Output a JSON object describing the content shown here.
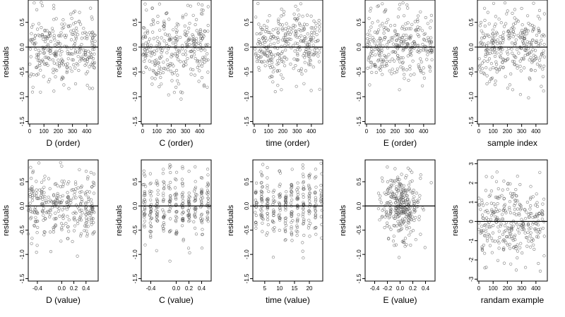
{
  "chart_data": [
    {
      "type": "scatter",
      "xlabel": "D (order)",
      "ylabel": "residuals",
      "xlim": [
        -10,
        480
      ],
      "ylim": [
        -1.55,
        0.95
      ],
      "xticks": [
        0,
        100,
        200,
        300,
        400
      ],
      "xtick_labels": [
        "0",
        "100",
        "200",
        "300",
        "400"
      ],
      "yticks": [
        -1.5,
        -1.0,
        -0.5,
        0.0,
        0.5
      ],
      "ytick_labels": [
        "-1.5",
        "-1.0",
        "-0.5",
        "0.0",
        "0.5"
      ],
      "hline": 0,
      "x_domain": [
        0,
        460
      ],
      "x_spread": 0,
      "y_sd": 0.36,
      "y_mean": 0.0,
      "seed": 11
    },
    {
      "type": "scatter",
      "xlabel": "C (order)",
      "ylabel": "residuals",
      "xlim": [
        -10,
        480
      ],
      "ylim": [
        -1.55,
        0.95
      ],
      "xticks": [
        0,
        100,
        200,
        300,
        400
      ],
      "xtick_labels": [
        "0",
        "100",
        "200",
        "300",
        "400"
      ],
      "yticks": [
        -1.5,
        -1.0,
        -0.5,
        0.0,
        0.5
      ],
      "ytick_labels": [
        "-1.5",
        "-1.0",
        "-0.5",
        "0.0",
        "0.5"
      ],
      "hline": 0,
      "x_domain": [
        0,
        460
      ],
      "x_spread": 0,
      "y_sd": 0.36,
      "y_mean": 0.0,
      "seed": 23
    },
    {
      "type": "scatter",
      "xlabel": "time (order)",
      "ylabel": "residuals",
      "xlim": [
        -10,
        480
      ],
      "ylim": [
        -1.55,
        0.95
      ],
      "xticks": [
        0,
        100,
        200,
        300,
        400
      ],
      "xtick_labels": [
        "0",
        "100",
        "200",
        "300",
        "400"
      ],
      "yticks": [
        -1.5,
        -1.0,
        -0.5,
        0.0,
        0.5
      ],
      "ytick_labels": [
        "-1.5",
        "-1.0",
        "-0.5",
        "0.0",
        "0.5"
      ],
      "hline": 0,
      "x_domain": [
        0,
        460
      ],
      "x_spread": 0,
      "y_sd": 0.36,
      "y_mean": 0.0,
      "seed": 37
    },
    {
      "type": "scatter",
      "xlabel": "E (order)",
      "ylabel": "residuals",
      "xlim": [
        -10,
        480
      ],
      "ylim": [
        -1.55,
        0.95
      ],
      "xticks": [
        0,
        100,
        200,
        300,
        400
      ],
      "xtick_labels": [
        "0",
        "100",
        "200",
        "300",
        "400"
      ],
      "yticks": [
        -1.5,
        -1.0,
        -0.5,
        0.0,
        0.5
      ],
      "ytick_labels": [
        "-1.5",
        "-1.0",
        "-0.5",
        "0.0",
        "0.5"
      ],
      "hline": 0,
      "x_domain": [
        0,
        460
      ],
      "x_spread": 0,
      "y_sd": 0.36,
      "y_mean": 0.0,
      "seed": 41
    },
    {
      "type": "scatter",
      "xlabel": "sample index",
      "ylabel": "residuals",
      "xlim": [
        -10,
        480
      ],
      "ylim": [
        -1.55,
        0.95
      ],
      "xticks": [
        0,
        100,
        200,
        300,
        400
      ],
      "xtick_labels": [
        "0",
        "100",
        "200",
        "300",
        "400"
      ],
      "yticks": [
        -1.5,
        -1.0,
        -0.5,
        0.0,
        0.5
      ],
      "ytick_labels": [
        "-1.5",
        "-1.0",
        "-0.5",
        "0.0",
        "0.5"
      ],
      "hline": 0,
      "x_domain": [
        0,
        460
      ],
      "x_spread": 0,
      "y_sd": 0.36,
      "y_mean": 0.0,
      "seed": 53
    },
    {
      "type": "scatter",
      "xlabel": "D (value)",
      "ylabel": "residuals",
      "xlim": [
        -0.55,
        0.6
      ],
      "ylim": [
        -1.55,
        0.95
      ],
      "xticks": [
        -0.4,
        0.0,
        0.2,
        0.4
      ],
      "xtick_labels": [
        "-0.4",
        "0.0",
        "0.2",
        "0.4"
      ],
      "yticks": [
        -1.5,
        -1.0,
        -0.5,
        0.0,
        0.5
      ],
      "ytick_labels": [
        "-1.5",
        "-1.0",
        "-0.5",
        "0.0",
        "0.5"
      ],
      "hline": 0,
      "x_columns": [
        -0.5,
        -0.4,
        -0.3,
        -0.2,
        -0.1,
        0.0,
        0.1,
        0.2,
        0.3,
        0.4,
        0.5
      ],
      "x_spread": 0.025,
      "y_sd": 0.36,
      "y_mean": 0.0,
      "seed": 61
    },
    {
      "type": "scatter",
      "xlabel": "C (value)",
      "ylabel": "residuals",
      "xlim": [
        -0.55,
        0.55
      ],
      "ylim": [
        -1.55,
        0.95
      ],
      "xticks": [
        -0.4,
        0.0,
        0.2,
        0.4
      ],
      "xtick_labels": [
        "-0.4",
        "0.0",
        "0.2",
        "0.4"
      ],
      "yticks": [
        -1.5,
        -1.0,
        -0.5,
        0.0,
        0.5
      ],
      "ytick_labels": [
        "-1.5",
        "-1.0",
        "-0.5",
        "0.0",
        "0.5"
      ],
      "hline": 0,
      "x_columns": [
        -0.5,
        -0.4,
        -0.3,
        -0.2,
        -0.1,
        0.0,
        0.1,
        0.2,
        0.3,
        0.4,
        0.5
      ],
      "x_spread": 0.008,
      "y_sd": 0.36,
      "y_mean": 0.0,
      "seed": 71
    },
    {
      "type": "scatter",
      "xlabel": "time (value)",
      "ylabel": "residuals",
      "xlim": [
        1,
        24.5
      ],
      "ylim": [
        -1.55,
        0.95
      ],
      "xticks": [
        5,
        10,
        15,
        20
      ],
      "xtick_labels": [
        "5",
        "10",
        "15",
        "20"
      ],
      "yticks": [
        -1.5,
        -1.0,
        -0.5,
        0.0,
        0.5
      ],
      "ytick_labels": [
        "-1.5",
        "-1.0",
        "-0.5",
        "0.0",
        "0.5"
      ],
      "hline": 0,
      "x_columns": [
        2,
        4,
        6,
        8,
        10,
        12,
        14,
        16,
        18,
        20,
        22,
        24
      ],
      "x_spread": 0.15,
      "y_sd": 0.36,
      "y_mean": 0.0,
      "seed": 83
    },
    {
      "type": "scatter",
      "xlabel": "E (value)",
      "ylabel": "residuals",
      "xlim": [
        -0.55,
        0.55
      ],
      "ylim": [
        -1.55,
        0.95
      ],
      "xticks": [
        -0.4,
        -0.2,
        0.0,
        0.2,
        0.4
      ],
      "xtick_labels": [
        "-0.4",
        "-0.2",
        "0.0",
        "0.2",
        "0.4"
      ],
      "yticks": [
        -1.5,
        -1.0,
        -0.5,
        0.0,
        0.5
      ],
      "ytick_labels": [
        "-1.5",
        "-1.0",
        "-0.5",
        "0.0",
        "0.5"
      ],
      "hline": 0,
      "x_normal": {
        "mean": 0.0,
        "sd": 0.16
      },
      "x_spread": 0,
      "y_sd": 0.36,
      "y_mean": 0.0,
      "seed": 97
    },
    {
      "type": "scatter",
      "xlabel": "randam example",
      "ylabel": "residuals",
      "xlim": [
        -10,
        480
      ],
      "ylim": [
        -3.1,
        3.2
      ],
      "xticks": [
        0,
        100,
        200,
        300,
        400
      ],
      "xtick_labels": [
        "0",
        "100",
        "200",
        "300",
        "400"
      ],
      "yticks": [
        -3,
        -2,
        -1,
        0,
        1,
        2,
        3
      ],
      "ytick_labels": [
        "-3",
        "-2",
        "-1",
        "0",
        "1",
        "2",
        "3"
      ],
      "hline": 0,
      "x_domain": [
        0,
        460
      ],
      "x_spread": 0,
      "y_sd": 1.0,
      "y_mean": 0.0,
      "seed": 101
    }
  ],
  "style": {
    "point_color": "#555555",
    "line_color": "#000000",
    "background": "#ffffff"
  }
}
